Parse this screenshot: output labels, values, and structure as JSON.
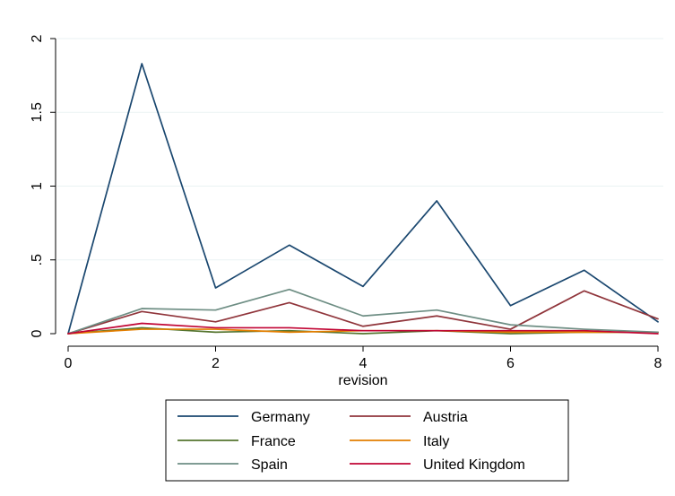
{
  "chart_data": {
    "type": "line",
    "xlabel": "revision",
    "ylabel": "",
    "xlim": [
      0,
      8
    ],
    "ylim": [
      0,
      2
    ],
    "x_ticks": [
      0,
      2,
      4,
      6,
      8
    ],
    "x_tick_labels": [
      "0",
      "2",
      "4",
      "6",
      "8"
    ],
    "y_ticks": [
      0,
      0.5,
      1,
      1.5,
      2
    ],
    "y_tick_labels": [
      "0",
      ".5",
      "1",
      "1.5",
      "2"
    ],
    "grid": true,
    "legend_position": "bottom",
    "x": [
      0,
      1,
      2,
      3,
      4,
      5,
      6,
      7,
      8
    ],
    "series": [
      {
        "name": "Germany",
        "color": "#1a476f",
        "values": [
          0,
          1.83,
          0.31,
          0.6,
          0.32,
          0.9,
          0.19,
          0.43,
          0.08
        ]
      },
      {
        "name": "Austria",
        "color": "#90353b",
        "values": [
          0,
          0.15,
          0.08,
          0.21,
          0.05,
          0.12,
          0.03,
          0.29,
          0.1
        ]
      },
      {
        "name": "France",
        "color": "#55752f",
        "values": [
          0,
          0.04,
          0.01,
          0.02,
          0.0,
          0.02,
          0.0,
          0.01,
          0.01
        ]
      },
      {
        "name": "Italy",
        "color": "#e37e00",
        "values": [
          0,
          0.03,
          0.03,
          0.01,
          0.02,
          0.02,
          0.01,
          0.01,
          0.01
        ]
      },
      {
        "name": "Spain",
        "color": "#6e8e84",
        "values": [
          0,
          0.17,
          0.16,
          0.3,
          0.12,
          0.16,
          0.06,
          0.03,
          0.01
        ]
      },
      {
        "name": "United Kingdom",
        "color": "#c10534",
        "values": [
          0,
          0.07,
          0.04,
          0.04,
          0.02,
          0.02,
          0.02,
          0.02,
          0.0
        ]
      }
    ]
  }
}
